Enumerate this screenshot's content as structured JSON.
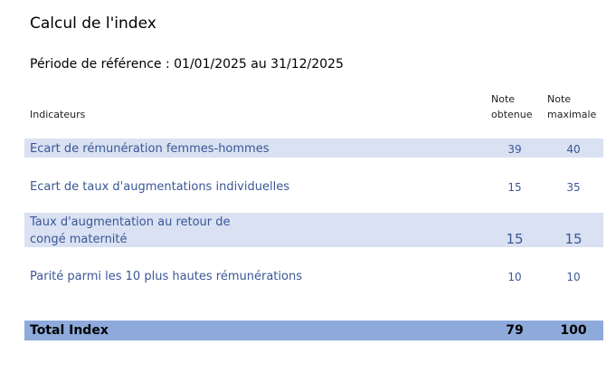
{
  "title": "Calcul de l'index",
  "period": "Période de référence : 01/01/2025 au 31/12/2025",
  "headers": {
    "indicator": "Indicateurs",
    "obtained": [
      "Note",
      "obtenue"
    ],
    "max": [
      "Note",
      "maximale"
    ]
  },
  "rows": [
    {
      "label": "Ecart de rémunération femmes-hommes",
      "obtained": "39",
      "max": "40"
    },
    {
      "label": "Ecart de taux d'augmentations individuelles",
      "obtained": "15",
      "max": "35"
    },
    {
      "label_lines": [
        "Taux d'augmentation au retour de",
        "congé maternité"
      ],
      "obtained": "15",
      "max": "15"
    },
    {
      "label": "Parité parmi les 10 plus hautes rémunérations",
      "obtained": "10",
      "max": "10"
    }
  ],
  "total": {
    "label": "Total Index",
    "obtained": "79",
    "max": "100"
  },
  "colors": {
    "band": "#d9e1f2",
    "total_band": "#8eaadb",
    "text": "#3a5796"
  }
}
